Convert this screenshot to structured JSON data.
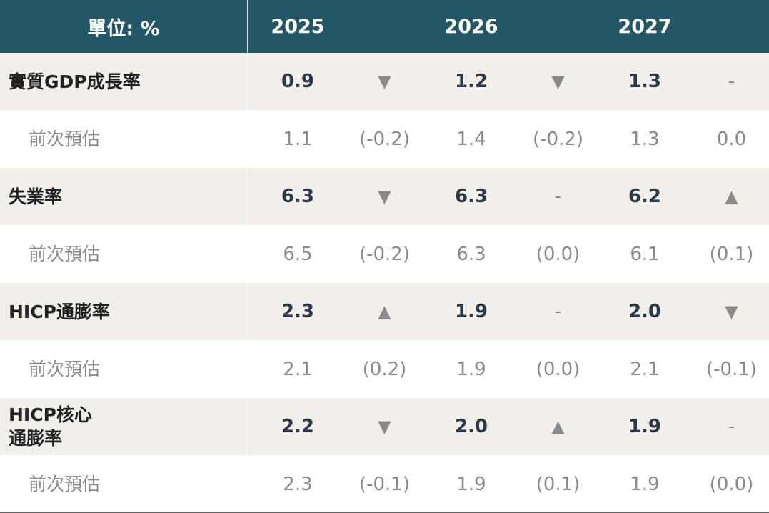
{
  "chart_data": {
    "type": "table",
    "header": {
      "unit_label": "單位: %",
      "years": [
        "2025",
        "2026",
        "2027"
      ]
    },
    "rows": [
      {
        "label": "實質GDP成長率",
        "values": [
          "0.9",
          "1.2",
          "1.3"
        ],
        "trend": [
          "down",
          "down",
          "none"
        ],
        "prev_label": "前次預估",
        "prev_values": [
          "1.1",
          "1.4",
          "1.3"
        ],
        "prev_changes": [
          "(-0.2)",
          "(-0.2)",
          "0.0"
        ]
      },
      {
        "label": "失業率",
        "values": [
          "6.3",
          "6.3",
          "6.2"
        ],
        "trend": [
          "down",
          "none",
          "up"
        ],
        "prev_label": "前次預估",
        "prev_values": [
          "6.5",
          "6.3",
          "6.1"
        ],
        "prev_changes": [
          "(-0.2)",
          "(0.0)",
          "(0.1)"
        ]
      },
      {
        "label": "HICP通膨率",
        "values": [
          "2.3",
          "1.9",
          "2.0"
        ],
        "trend": [
          "up",
          "none",
          "down"
        ],
        "prev_label": "前次預估",
        "prev_values": [
          "2.1",
          "1.9",
          "2.1"
        ],
        "prev_changes": [
          "(0.2)",
          "(0.0)",
          "(-0.1)"
        ]
      },
      {
        "label_line1": "HICP核心",
        "label_line2": "通膨率",
        "values": [
          "2.2",
          "2.0",
          "1.9"
        ],
        "trend": [
          "down",
          "up",
          "none"
        ],
        "prev_label": "前次預估",
        "prev_values": [
          "2.3",
          "1.9",
          "1.9"
        ],
        "prev_changes": [
          "(-0.1)",
          "(0.1)",
          "(0.0)"
        ]
      }
    ],
    "symbols": {
      "up": "▲",
      "down": "▼",
      "none": "-"
    },
    "colors": {
      "header_bg": "#235766",
      "row_bg": "#f2efea",
      "up": "#128c8a",
      "down": "#f25a5a"
    }
  }
}
